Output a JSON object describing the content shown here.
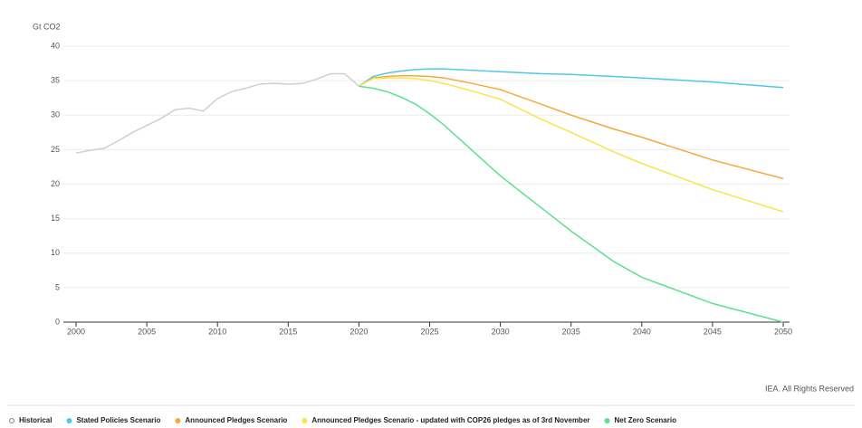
{
  "chart_data": {
    "type": "line",
    "y_label": "Gt CO2",
    "credit": "IEA. All Rights Reserved",
    "x": [
      2000,
      2001,
      2002,
      2003,
      2004,
      2005,
      2006,
      2007,
      2008,
      2009,
      2010,
      2011,
      2012,
      2013,
      2014,
      2015,
      2016,
      2017,
      2018,
      2019,
      2020,
      2021,
      2022,
      2023,
      2024,
      2025,
      2026,
      2028,
      2030,
      2033,
      2035,
      2038,
      2040,
      2045,
      2050
    ],
    "series": [
      {
        "name": "Historical",
        "color": "#cfcfcf",
        "values": [
          24.5,
          24.9,
          25.2,
          26.3,
          27.5,
          28.5,
          29.5,
          30.8,
          31.0,
          30.6,
          32.4,
          33.4,
          33.9,
          34.5,
          34.6,
          34.5,
          34.6,
          35.2,
          36.0,
          36.0,
          34.2,
          null,
          null,
          null,
          null,
          null,
          null,
          null,
          null,
          null,
          null,
          null,
          null,
          null,
          null
        ]
      },
      {
        "name": "Stated Policies Scenario",
        "color": "#4fc8e8",
        "values": [
          null,
          null,
          null,
          null,
          null,
          null,
          null,
          null,
          null,
          null,
          null,
          null,
          null,
          null,
          null,
          null,
          null,
          null,
          null,
          null,
          34.2,
          35.6,
          36.1,
          36.4,
          36.6,
          36.7,
          36.7,
          36.5,
          36.3,
          36.0,
          35.9,
          35.6,
          35.4,
          34.8,
          34.0
        ]
      },
      {
        "name": "Announced Pledges Scenario",
        "color": "#f6a93b",
        "values": [
          null,
          null,
          null,
          null,
          null,
          null,
          null,
          null,
          null,
          null,
          null,
          null,
          null,
          null,
          null,
          null,
          null,
          null,
          null,
          null,
          34.2,
          35.4,
          35.6,
          35.7,
          35.7,
          35.6,
          35.4,
          34.6,
          33.7,
          31.5,
          30.0,
          28.0,
          26.8,
          23.5,
          20.8
        ]
      },
      {
        "name": "Announced Pledges Scenario - updated with COP26 pledges as of 3rd November",
        "color": "#f8e54a",
        "values": [
          null,
          null,
          null,
          null,
          null,
          null,
          null,
          null,
          null,
          null,
          null,
          null,
          null,
          null,
          null,
          null,
          null,
          null,
          null,
          null,
          34.2,
          35.3,
          35.4,
          35.4,
          35.3,
          35.0,
          34.6,
          33.5,
          32.3,
          29.3,
          27.5,
          24.7,
          23.0,
          19.2,
          16.0
        ]
      },
      {
        "name": "Net Zero Scenario",
        "color": "#5de08c",
        "values": [
          null,
          null,
          null,
          null,
          null,
          null,
          null,
          null,
          null,
          null,
          null,
          null,
          null,
          null,
          null,
          null,
          null,
          null,
          null,
          null,
          34.2,
          33.9,
          33.4,
          32.6,
          31.6,
          30.2,
          28.6,
          24.9,
          21.2,
          16.4,
          13.2,
          8.8,
          6.5,
          2.7,
          0
        ]
      }
    ],
    "xlim": [
      2000,
      2050
    ],
    "xticks": [
      2000,
      2005,
      2010,
      2015,
      2020,
      2025,
      2030,
      2035,
      2040,
      2045,
      2050
    ],
    "ylim": [
      0,
      40
    ],
    "yticks": [
      0,
      5,
      10,
      15,
      20,
      25,
      30,
      35,
      40
    ],
    "grid": true
  }
}
